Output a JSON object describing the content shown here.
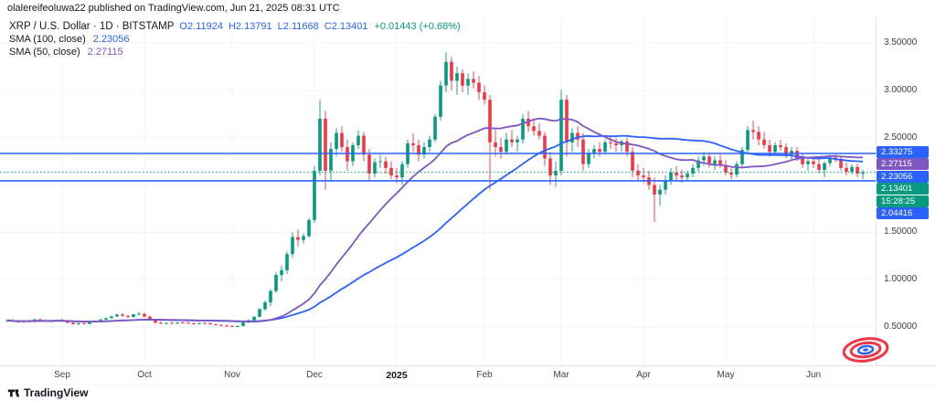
{
  "attribution": "olalereifeoluwa22 published on TradingView.com, Jun 21, 2025 08:31 UTC",
  "legend": {
    "symbol": "XRP / U.S. Dollar · 1D · BITSTAMP",
    "ohlc_items": [
      {
        "label": "O",
        "value": "2.11924"
      },
      {
        "label": "H",
        "value": "2.13791"
      },
      {
        "label": "L",
        "value": "2.11668"
      },
      {
        "label": "C",
        "value": "2.13401"
      }
    ],
    "change": "+0.01443 (+0.68%)",
    "indicators": [
      {
        "name": "SMA (100, close)",
        "value": "2.23056",
        "color": "#2962FF"
      },
      {
        "name": "SMA (50, close)",
        "value": "2.27115",
        "color": "#7E57C2"
      }
    ]
  },
  "price_axis": {
    "ticks": [
      "3.50000",
      "3.00000",
      "2.50000",
      "2.00000",
      "1.50000",
      "1.00000",
      "0.50000"
    ],
    "tick_values": [
      3.5,
      3.0,
      2.5,
      2.0,
      1.5,
      1.0,
      0.5
    ],
    "tags": [
      {
        "label": "2.33275",
        "value": 2.33275,
        "color": "#2962FF",
        "name": "upper-line-price-tag"
      },
      {
        "label": "2.27115",
        "value": 2.27115,
        "color": "#7E57C2",
        "name": "sma50-price-tag"
      },
      {
        "label": "2.23056",
        "value": 2.23056,
        "color": "#2962FF",
        "name": "sma100-price-tag"
      },
      {
        "label": "2.13401",
        "value": 2.13401,
        "color": "#089981",
        "name": "last-price-tag"
      },
      {
        "label": "15:28:25",
        "value": null,
        "color": "#089981",
        "name": "countdown-tag"
      },
      {
        "label": "2.04416",
        "value": 2.04416,
        "color": "#2962FF",
        "name": "lower-line-price-tag"
      }
    ]
  },
  "time_axis": {
    "labels": [
      {
        "text": "Sep",
        "index": 10
      },
      {
        "text": "Oct",
        "index": 25
      },
      {
        "text": "Nov",
        "index": 41
      },
      {
        "text": "Dec",
        "index": 56
      },
      {
        "text": "2025",
        "index": 71,
        "bold": true
      },
      {
        "text": "Feb",
        "index": 87
      },
      {
        "text": "Mar",
        "index": 101
      },
      {
        "text": "Apr",
        "index": 116
      },
      {
        "text": "May",
        "index": 131
      },
      {
        "text": "Jun",
        "index": 147
      }
    ]
  },
  "footer": {
    "brand": "TradingView"
  },
  "chart_data": {
    "type": "candlestick",
    "title": "XRP / U.S. Dollar · 1D · BITSTAMP",
    "symbol": "XRP/USD",
    "timeframe": "1D",
    "exchange": "BITSTAMP",
    "last": {
      "open": 2.11924,
      "high": 2.13791,
      "low": 2.11668,
      "close": 2.13401,
      "change": 0.01443,
      "change_pct": 0.68
    },
    "ylim": [
      0.5,
      3.5
    ],
    "colors": {
      "up": "#089981",
      "down": "#F23645"
    },
    "overlays": {
      "sma100": {
        "period": 100,
        "color": "#2962FF",
        "last": 2.23056
      },
      "sma50": {
        "period": 50,
        "color": "#7E57C2",
        "last": 2.27115
      },
      "hlines": [
        {
          "value": 2.33275,
          "color": "#2962FF"
        },
        {
          "value": 2.04416,
          "color": "#2962FF"
        }
      ],
      "last_price_line": {
        "value": 2.13401,
        "color": "#089981",
        "style": "dotted"
      }
    },
    "candles": [
      [
        0.565,
        0.58,
        0.55,
        0.57
      ],
      [
        0.57,
        0.585,
        0.555,
        0.56
      ],
      [
        0.56,
        0.575,
        0.545,
        0.555
      ],
      [
        0.555,
        0.57,
        0.54,
        0.562
      ],
      [
        0.562,
        0.578,
        0.552,
        0.558
      ],
      [
        0.558,
        0.586,
        0.548,
        0.58
      ],
      [
        0.58,
        0.592,
        0.56,
        0.568
      ],
      [
        0.568,
        0.585,
        0.555,
        0.56
      ],
      [
        0.56,
        0.572,
        0.55,
        0.565
      ],
      [
        0.565,
        0.58,
        0.558,
        0.575
      ],
      [
        0.575,
        0.59,
        0.56,
        0.565
      ],
      [
        0.565,
        0.57,
        0.54,
        0.545
      ],
      [
        0.545,
        0.555,
        0.525,
        0.53
      ],
      [
        0.53,
        0.545,
        0.52,
        0.54
      ],
      [
        0.54,
        0.55,
        0.528,
        0.532
      ],
      [
        0.532,
        0.56,
        0.53,
        0.555
      ],
      [
        0.555,
        0.572,
        0.548,
        0.568
      ],
      [
        0.568,
        0.585,
        0.56,
        0.58
      ],
      [
        0.58,
        0.6,
        0.575,
        0.595
      ],
      [
        0.595,
        0.62,
        0.588,
        0.612
      ],
      [
        0.612,
        0.64,
        0.605,
        0.632
      ],
      [
        0.632,
        0.645,
        0.61,
        0.618
      ],
      [
        0.618,
        0.628,
        0.598,
        0.605
      ],
      [
        0.605,
        0.64,
        0.6,
        0.635
      ],
      [
        0.635,
        0.66,
        0.625,
        0.64
      ],
      [
        0.64,
        0.648,
        0.6,
        0.61
      ],
      [
        0.61,
        0.618,
        0.57,
        0.578
      ],
      [
        0.578,
        0.585,
        0.538,
        0.545
      ],
      [
        0.545,
        0.56,
        0.53,
        0.535
      ],
      [
        0.535,
        0.548,
        0.528,
        0.542
      ],
      [
        0.542,
        0.556,
        0.536,
        0.54
      ],
      [
        0.54,
        0.552,
        0.532,
        0.548
      ],
      [
        0.548,
        0.558,
        0.54,
        0.545
      ],
      [
        0.545,
        0.555,
        0.535,
        0.538
      ],
      [
        0.538,
        0.548,
        0.528,
        0.532
      ],
      [
        0.532,
        0.545,
        0.525,
        0.542
      ],
      [
        0.542,
        0.552,
        0.535,
        0.54
      ],
      [
        0.54,
        0.548,
        0.525,
        0.528
      ],
      [
        0.528,
        0.535,
        0.515,
        0.52
      ],
      [
        0.52,
        0.53,
        0.51,
        0.515
      ],
      [
        0.515,
        0.528,
        0.508,
        0.512
      ],
      [
        0.512,
        0.52,
        0.5,
        0.505
      ],
      [
        0.505,
        0.515,
        0.498,
        0.51
      ],
      [
        0.51,
        0.555,
        0.505,
        0.548
      ],
      [
        0.548,
        0.58,
        0.54,
        0.572
      ],
      [
        0.572,
        0.615,
        0.565,
        0.608
      ],
      [
        0.608,
        0.7,
        0.6,
        0.688
      ],
      [
        0.688,
        0.78,
        0.67,
        0.76
      ],
      [
        0.76,
        0.9,
        0.72,
        0.88
      ],
      [
        0.88,
        1.08,
        0.86,
        1.05
      ],
      [
        1.05,
        1.15,
        0.98,
        1.1
      ],
      [
        1.1,
        1.3,
        1.06,
        1.27
      ],
      [
        1.27,
        1.5,
        1.23,
        1.45
      ],
      [
        1.45,
        1.53,
        1.35,
        1.42
      ],
      [
        1.42,
        1.49,
        1.38,
        1.46
      ],
      [
        1.46,
        1.65,
        1.44,
        1.63
      ],
      [
        1.63,
        2.2,
        1.6,
        2.15
      ],
      [
        2.15,
        2.9,
        2.1,
        2.7
      ],
      [
        2.7,
        2.78,
        1.95,
        2.15
      ],
      [
        2.15,
        2.45,
        2.05,
        2.38
      ],
      [
        2.38,
        2.6,
        2.3,
        2.55
      ],
      [
        2.55,
        2.62,
        2.35,
        2.4
      ],
      [
        2.4,
        2.48,
        2.15,
        2.25
      ],
      [
        2.25,
        2.45,
        2.2,
        2.42
      ],
      [
        2.42,
        2.58,
        2.38,
        2.52
      ],
      [
        2.52,
        2.56,
        2.25,
        2.32
      ],
      [
        2.32,
        2.38,
        2.05,
        2.12
      ],
      [
        2.12,
        2.28,
        2.08,
        2.24
      ],
      [
        2.24,
        2.32,
        2.18,
        2.25
      ],
      [
        2.25,
        2.3,
        2.12,
        2.18
      ],
      [
        2.18,
        2.25,
        2.06,
        2.1
      ],
      [
        2.1,
        2.18,
        2.02,
        2.08
      ],
      [
        2.08,
        2.25,
        2.0,
        2.22
      ],
      [
        2.22,
        2.48,
        2.18,
        2.44
      ],
      [
        2.44,
        2.55,
        2.35,
        2.42
      ],
      [
        2.42,
        2.48,
        2.25,
        2.32
      ],
      [
        2.32,
        2.45,
        2.28,
        2.4
      ],
      [
        2.4,
        2.52,
        2.35,
        2.48
      ],
      [
        2.48,
        2.75,
        2.45,
        2.72
      ],
      [
        2.72,
        3.1,
        2.68,
        3.05
      ],
      [
        3.05,
        3.4,
        2.98,
        3.3
      ],
      [
        3.3,
        3.35,
        3.0,
        3.1
      ],
      [
        3.1,
        3.25,
        2.95,
        3.18
      ],
      [
        3.18,
        3.22,
        2.98,
        3.05
      ],
      [
        3.05,
        3.18,
        2.95,
        3.12
      ],
      [
        3.12,
        3.2,
        3.02,
        3.08
      ],
      [
        3.08,
        3.15,
        2.9,
        2.98
      ],
      [
        2.98,
        3.05,
        2.85,
        2.9
      ],
      [
        2.9,
        2.95,
        1.95,
        2.45
      ],
      [
        2.45,
        2.58,
        2.3,
        2.4
      ],
      [
        2.4,
        2.5,
        2.28,
        2.35
      ],
      [
        2.35,
        2.55,
        2.32,
        2.48
      ],
      [
        2.48,
        2.58,
        2.4,
        2.45
      ],
      [
        2.45,
        2.52,
        2.35,
        2.48
      ],
      [
        2.48,
        2.75,
        2.44,
        2.7
      ],
      [
        2.7,
        2.78,
        2.56,
        2.62
      ],
      [
        2.62,
        2.7,
        2.52,
        2.57
      ],
      [
        2.57,
        2.65,
        2.48,
        2.52
      ],
      [
        2.52,
        2.56,
        2.2,
        2.28
      ],
      [
        2.28,
        2.35,
        2.0,
        2.1
      ],
      [
        2.1,
        2.25,
        1.98,
        2.15
      ],
      [
        2.15,
        3.0,
        2.1,
        2.9
      ],
      [
        2.9,
        2.95,
        2.3,
        2.45
      ],
      [
        2.45,
        2.6,
        2.35,
        2.55
      ],
      [
        2.55,
        2.62,
        2.4,
        2.48
      ],
      [
        2.48,
        2.55,
        2.15,
        2.22
      ],
      [
        2.22,
        2.38,
        2.18,
        2.34
      ],
      [
        2.34,
        2.42,
        2.28,
        2.38
      ],
      [
        2.38,
        2.45,
        2.3,
        2.35
      ],
      [
        2.35,
        2.48,
        2.32,
        2.45
      ],
      [
        2.45,
        2.52,
        2.38,
        2.44
      ],
      [
        2.44,
        2.5,
        2.35,
        2.42
      ],
      [
        2.42,
        2.48,
        2.35,
        2.46
      ],
      [
        2.46,
        2.5,
        2.3,
        2.35
      ],
      [
        2.35,
        2.4,
        2.08,
        2.15
      ],
      [
        2.15,
        2.22,
        2.05,
        2.1
      ],
      [
        2.1,
        2.18,
        2.02,
        2.08
      ],
      [
        2.08,
        2.15,
        1.95,
        2.0
      ],
      [
        2.0,
        2.08,
        1.61,
        1.9
      ],
      [
        1.9,
        2.0,
        1.78,
        1.95
      ],
      [
        1.95,
        2.1,
        1.9,
        2.05
      ],
      [
        2.05,
        2.18,
        2.0,
        2.13
      ],
      [
        2.13,
        2.2,
        2.05,
        2.1
      ],
      [
        2.1,
        2.16,
        2.02,
        2.08
      ],
      [
        2.08,
        2.15,
        2.04,
        2.12
      ],
      [
        2.12,
        2.22,
        2.08,
        2.18
      ],
      [
        2.18,
        2.3,
        2.14,
        2.26
      ],
      [
        2.26,
        2.35,
        2.2,
        2.3
      ],
      [
        2.3,
        2.34,
        2.18,
        2.22
      ],
      [
        2.22,
        2.3,
        2.16,
        2.26
      ],
      [
        2.26,
        2.32,
        2.18,
        2.21
      ],
      [
        2.21,
        2.26,
        2.1,
        2.13
      ],
      [
        2.13,
        2.18,
        2.06,
        2.11
      ],
      [
        2.11,
        2.25,
        2.08,
        2.22
      ],
      [
        2.22,
        2.4,
        2.18,
        2.37
      ],
      [
        2.37,
        2.62,
        2.33,
        2.58
      ],
      [
        2.58,
        2.68,
        2.48,
        2.56
      ],
      [
        2.56,
        2.62,
        2.42,
        2.48
      ],
      [
        2.48,
        2.56,
        2.38,
        2.42
      ],
      [
        2.42,
        2.48,
        2.3,
        2.35
      ],
      [
        2.35,
        2.45,
        2.32,
        2.42
      ],
      [
        2.42,
        2.48,
        2.36,
        2.4
      ],
      [
        2.4,
        2.44,
        2.28,
        2.32
      ],
      [
        2.32,
        2.4,
        2.26,
        2.36
      ],
      [
        2.36,
        2.4,
        2.25,
        2.28
      ],
      [
        2.28,
        2.33,
        2.18,
        2.22
      ],
      [
        2.22,
        2.28,
        2.15,
        2.25
      ],
      [
        2.25,
        2.3,
        2.18,
        2.22
      ],
      [
        2.22,
        2.28,
        2.12,
        2.16
      ],
      [
        2.16,
        2.25,
        2.08,
        2.23
      ],
      [
        2.23,
        2.32,
        2.2,
        2.29
      ],
      [
        2.29,
        2.34,
        2.24,
        2.27
      ],
      [
        2.27,
        2.31,
        2.15,
        2.18
      ],
      [
        2.18,
        2.24,
        2.1,
        2.14
      ],
      [
        2.14,
        2.22,
        2.11,
        2.19
      ],
      [
        2.19,
        2.23,
        2.08,
        2.12
      ],
      [
        2.12,
        2.16,
        2.06,
        2.134
      ]
    ]
  }
}
